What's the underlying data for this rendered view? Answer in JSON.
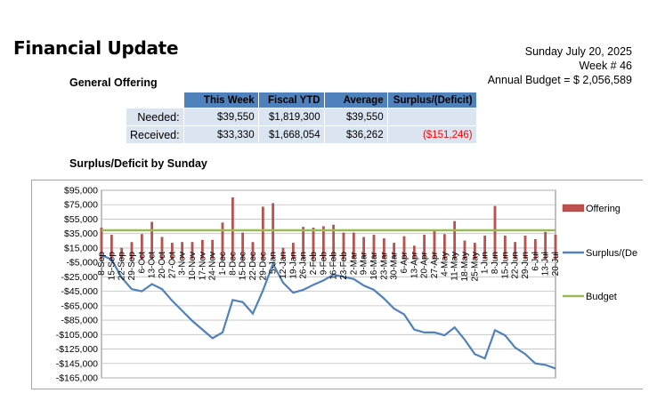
{
  "header": {
    "title": "Financial Update",
    "date": "Sunday July 20, 2025",
    "week": "Week # 46",
    "annual_budget": "Annual Budget = $ 2,056,589"
  },
  "offering_section": {
    "title": "General Offering",
    "columns": [
      "This Week",
      "Fiscal YTD",
      "Average",
      "Surplus/(Deficit)"
    ],
    "rows": [
      {
        "label": "Needed:",
        "cells": [
          "$39,550",
          "$1,819,300",
          "$39,550",
          ""
        ]
      },
      {
        "label": "Received:",
        "cells": [
          "$33,330",
          "$1,668,054",
          "$36,262",
          "($151,246)"
        ]
      }
    ]
  },
  "chart_section": {
    "title": "Surplus/Deficit by Sunday"
  },
  "colors": {
    "offering": "#c0504d",
    "surplus": "#4f81bd",
    "budget": "#9bbb59",
    "header_fill": "#4f81bd",
    "cell_fill": "#dbe5f1",
    "negative": "#ff0000"
  },
  "chart_data": {
    "type": "line",
    "categories": [
      "8-Sep",
      "15-Sep",
      "22-Sep",
      "29-Sep",
      "6-Oct",
      "13-Oct",
      "20-Oct",
      "27-Oct",
      "3-Nov",
      "10-Nov",
      "17-Nov",
      "24-Nov",
      "1-Dec",
      "8-Dec",
      "15-Dec",
      "22-Dec",
      "29-Dec",
      "5-Jan",
      "12-Jan",
      "19-Jan",
      "26-Jan",
      "2-Feb",
      "9-Feb",
      "16-Feb",
      "23-Feb",
      "2-Mar",
      "9-Mar",
      "16-Mar",
      "23-Mar",
      "30-Mar",
      "6-Apr",
      "13-Apr",
      "20-Apr",
      "27-Apr",
      "4-May",
      "11-May",
      "18-May",
      "25-May",
      "1-Jun",
      "8-Jun",
      "15-Jun",
      "22-Jun",
      "29-Jun",
      "6-Jul",
      "13-Jul",
      "20-Jul"
    ],
    "tick_labels": [
      "8-Sep",
      "15-Sep",
      "22-Sep",
      "29-Sep",
      "6-Oct",
      "13-Oct",
      "20-Oct",
      "27-Oct",
      "3-Nov",
      "10-Nov",
      "17-Nov",
      "24-Nov",
      "1-Dec",
      "8-Dec",
      "15-Dec",
      "22-Dec",
      "29-Dec",
      "5-Jan",
      "12-Jan",
      "19-Jan",
      "26-Jan",
      "2-Feb",
      "9-Feb",
      "16-Feb",
      "23-Feb",
      "2-Mar",
      "9-Mar",
      "16-Mar",
      "23-Mar",
      "30-Mar",
      "6-Apr",
      "13-Apr",
      "20-Apr",
      "27-Apr",
      "4-May",
      "11-May",
      "18-May",
      "25-May",
      "1-Jun",
      "8-Jun",
      "15-Jun",
      "22-Jun",
      "29-Jun",
      "6-Jul",
      "13-Jul",
      "20-Jul"
    ],
    "series": [
      {
        "name": "Offering",
        "type": "bar",
        "values": [
          43000,
          33000,
          15000,
          23000,
          34000,
          51000,
          30000,
          22000,
          23000,
          23000,
          26000,
          26000,
          50000,
          85000,
          36000,
          23000,
          72000,
          77000,
          15000,
          22000,
          44000,
          43000,
          45000,
          47000,
          36000,
          36000,
          30000,
          33000,
          28000,
          22000,
          31000,
          18000,
          33000,
          38000,
          34000,
          52000,
          25000,
          22000,
          32000,
          73000,
          32000,
          23000,
          32000,
          27000,
          37000,
          33000
        ]
      },
      {
        "name": "Surplus/(Deficit)",
        "type": "line",
        "values": [
          5000,
          -1000,
          -26000,
          -42000,
          -45000,
          -35000,
          -42000,
          -58000,
          -72000,
          -86000,
          -98000,
          -110000,
          -102000,
          -57000,
          -60000,
          -76000,
          -44000,
          -7000,
          -33000,
          -47000,
          -43000,
          -36000,
          -30000,
          -22000,
          -25000,
          -28000,
          -37000,
          -43000,
          -55000,
          -69000,
          -77000,
          -98000,
          -102000,
          -102000,
          -106000,
          -95000,
          -112000,
          -132000,
          -138000,
          -99000,
          -106000,
          -123000,
          -132000,
          -145000,
          -147000,
          -152000
        ]
      },
      {
        "name": "Budget",
        "type": "line",
        "values": [
          39550,
          39550,
          39550,
          39550,
          39550,
          39550,
          39550,
          39550,
          39550,
          39550,
          39550,
          39550,
          39550,
          39550,
          39550,
          39550,
          39550,
          39550,
          39550,
          39550,
          39550,
          39550,
          39550,
          39550,
          39550,
          39550,
          39550,
          39550,
          39550,
          39550,
          39550,
          39550,
          39550,
          39550,
          39550,
          39550,
          39550,
          39550,
          39550,
          39550,
          39550,
          39550,
          39550,
          39550,
          39550,
          39550
        ]
      }
    ],
    "ylim": [
      -165000,
      95000
    ],
    "y_ticks": [
      95000,
      75000,
      55000,
      35000,
      15000,
      -5000,
      -25000,
      -45000,
      -65000,
      -85000,
      -105000,
      -125000,
      -145000,
      -165000
    ],
    "y_tick_labels": [
      "$95,000",
      "$75,000",
      "$55,000",
      "$35,000",
      "$15,000",
      "-$5,000",
      "-$25,000",
      "-$45,000",
      "-$65,000",
      "-$85,000",
      "-$105,000",
      "-$125,000",
      "-$145,000",
      "-$165,000"
    ],
    "legend": [
      "Offering",
      "Surplus/(De",
      "Budget"
    ],
    "legend_position": "right",
    "grid": true
  }
}
